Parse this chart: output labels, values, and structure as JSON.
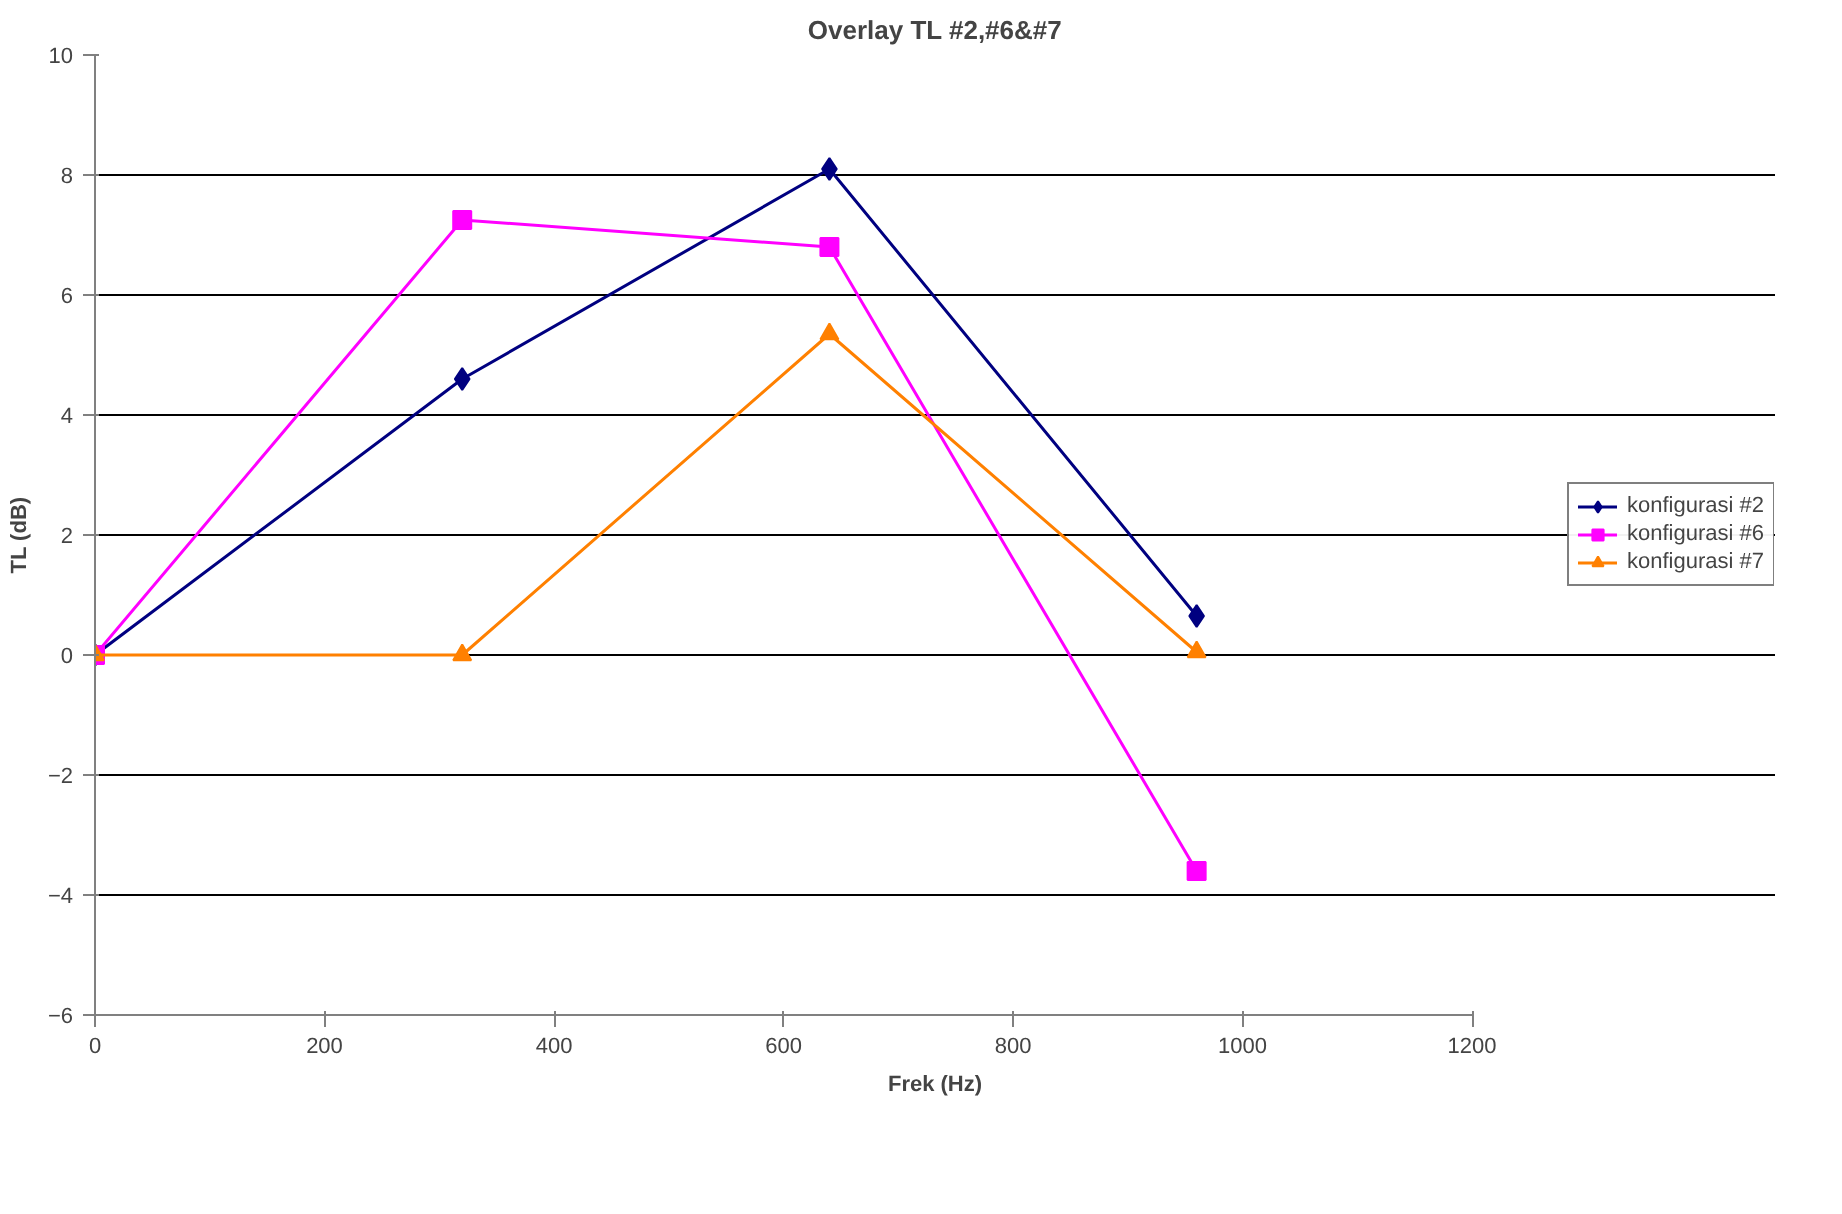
{
  "chart_data": {
    "type": "line",
    "title": "Overlay TL #2,#6&#7",
    "xlabel": "Frek (Hz)",
    "ylabel": "TL (dB)",
    "x": [
      0,
      320,
      640,
      960
    ],
    "series": [
      {
        "name": "konfigurasi #2",
        "color": "#000080",
        "marker": "diamond",
        "values": [
          0,
          4.6,
          8.1,
          0.65
        ]
      },
      {
        "name": "konfigurasi #6",
        "color": "#ff00ff",
        "marker": "square",
        "values": [
          0,
          7.25,
          6.8,
          -3.6
        ]
      },
      {
        "name": "konfigurasi #7",
        "color": "#ff8000",
        "marker": "triangle",
        "values": [
          0,
          0,
          5.35,
          0.05
        ]
      }
    ],
    "xlim": [
      0,
      1200
    ],
    "xticks": [
      0,
      200,
      400,
      600,
      800,
      1000,
      1200
    ],
    "ylim": [
      -6,
      10
    ],
    "yticks": [
      -6,
      -4,
      -2,
      0,
      2,
      4,
      6,
      8,
      10
    ],
    "grid": "y",
    "legend": "right",
    "line_style": "solid"
  }
}
